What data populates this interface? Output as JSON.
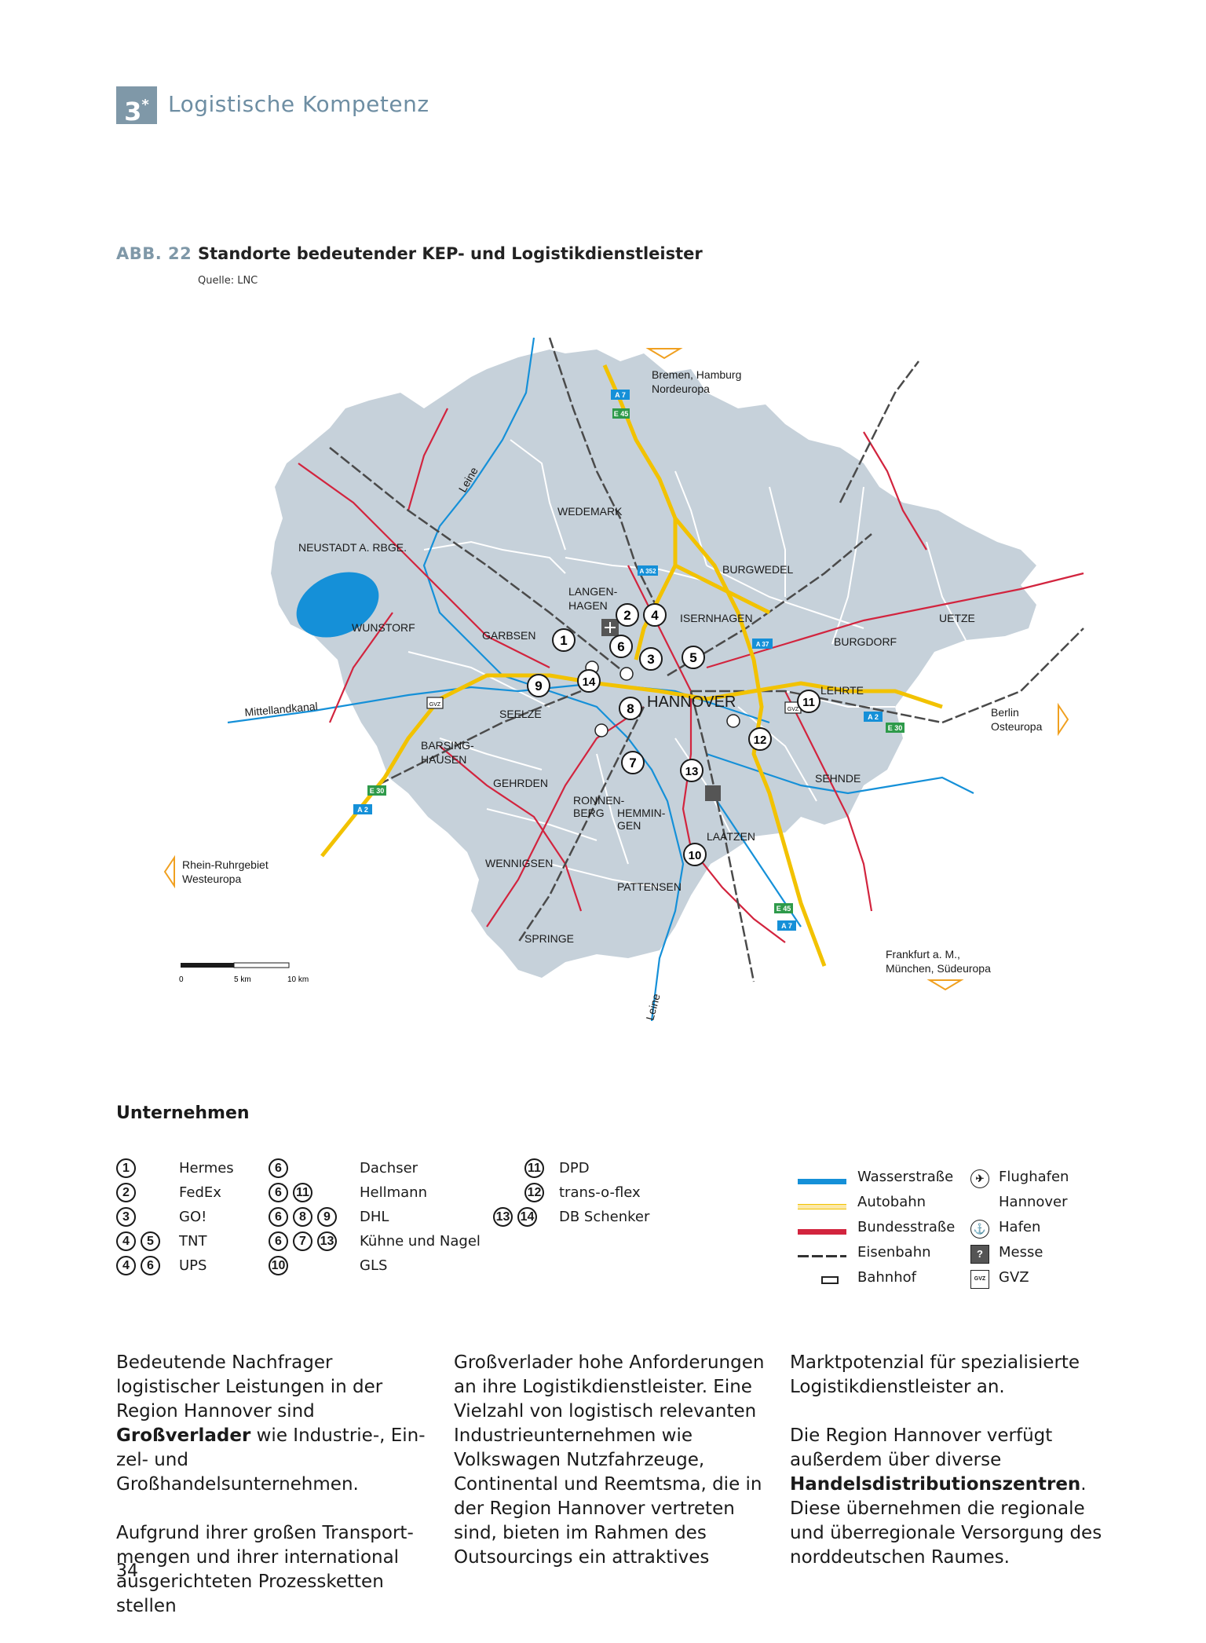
{
  "header": {
    "chapter_number": "3",
    "chapter_mark": "*",
    "chapter_title": "Logistische Kompetenz"
  },
  "figure": {
    "label": "ABB. 22",
    "title": "Standorte bedeutender KEP- und Logistikdienstleister",
    "source": "Quelle: LNC"
  },
  "map": {
    "region": "Region Hannover",
    "city": "HANNOVER",
    "towns": [
      "WEDEMARK",
      "NEUSTADT A. RBGE.",
      "BURGWEDEL",
      "LANGEN-",
      "HAGEN",
      "ISERNHAGEN",
      "UETZE",
      "WUNSTORF",
      "GARBSEN",
      "BURGDORF",
      "LEHRTE",
      "SEELZE",
      "BARSING-",
      "HAUSEN",
      "GEHRDEN",
      "SEHNDE",
      "RONNEN-",
      "BERG",
      "HEMMIN-",
      "GEN",
      "LAATZEN",
      "WENNIGSEN",
      "PATTENSEN",
      "SPRINGE"
    ],
    "directions": {
      "north": [
        "Bremen, Hamburg",
        "Nordeuropa"
      ],
      "east": [
        "Berlin",
        "Osteuropa"
      ],
      "west": [
        "Rhein-Ruhrgebiet",
        "Westeuropa"
      ],
      "south": [
        "Frankfurt a. M.,",
        "München, Südeuropa"
      ]
    },
    "water_labels": [
      "Leine",
      "Mittellandkanal",
      "Leine"
    ],
    "road_badges": {
      "a7_top": "A 7",
      "e45_top": "E 45",
      "a352": "A 352",
      "a37": "A 37",
      "a2_east": "A 2",
      "e30_east": "E 30",
      "e30_west": "E 30",
      "a2_west": "A 2",
      "e45_bottom": "E 45",
      "a7_bottom": "A 7"
    },
    "scale": {
      "labels": [
        "0",
        "5 km",
        "10 km"
      ]
    },
    "markers": [
      "1",
      "2",
      "4",
      "6",
      "3",
      "5",
      "9",
      "14",
      "8",
      "11",
      "12",
      "7",
      "13",
      "10"
    ],
    "gvz_label": "GVZ",
    "colors": {
      "land": "#c6d1da",
      "water": "#1590d8",
      "autobahn": "#f2c200",
      "bundesstrasse": "#d2243e",
      "rail": "#4a4a4a"
    }
  },
  "legend": {
    "heading": "Unternehmen",
    "companies": [
      {
        "nums": [
          "1"
        ],
        "name": "Hermes"
      },
      {
        "nums": [
          "2"
        ],
        "name": "FedEx"
      },
      {
        "nums": [
          "3"
        ],
        "name": "GO!"
      },
      {
        "nums": [
          "4",
          "5"
        ],
        "name": "TNT"
      },
      {
        "nums": [
          "4",
          "6"
        ],
        "name": "UPS"
      },
      {
        "nums": [
          "6"
        ],
        "name": "Dachser"
      },
      {
        "nums": [
          "6",
          "11"
        ],
        "name": "Hellmann"
      },
      {
        "nums": [
          "6",
          "8",
          "9"
        ],
        "name": "DHL"
      },
      {
        "nums": [
          "6",
          "7",
          "13"
        ],
        "name": "Kühne und Nagel"
      },
      {
        "nums": [
          "10"
        ],
        "name": "GLS"
      },
      {
        "nums": [
          "11"
        ],
        "name": "DPD"
      },
      {
        "nums": [
          "12"
        ],
        "name": "trans-o-flex"
      },
      {
        "nums": [
          "13",
          "14"
        ],
        "name": "DB Schenker"
      }
    ],
    "line_keys": [
      "Wasserstraße",
      "Autobahn",
      "Bundesstraße",
      "Eisenbahn",
      "Bahnhof"
    ],
    "symbol_keys": [
      "Flughafen",
      "Hannover",
      "Hafen",
      "Messe",
      "GVZ"
    ],
    "gvz_icon_text": "GVZ"
  },
  "body": {
    "col1_p1_before": "Bedeutende Nachfrager logistischer Leistungen in der Region Hannover sind ",
    "col1_p1_bold": "Großverlader",
    "col1_p1_after": " wie Industrie-, Ein­zel- und Großhandelsunternehmen.",
    "col1_p2": "Aufgrund ihrer großen Transport­mengen und ihrer international aus­gerichteten Prozessketten stellen",
    "col2_p1": "Großverlader hohe Anforderungen an ihre Logistikdienstleister. Eine Vielzahl von logistisch relevanten Industrieunternehmen wie Volkswa­gen Nutzfahrzeuge, Continental und Reemtsma, die in der Region Hanno­ver vertreten sind, bieten im Rahmen des Outsourcings ein attraktives",
    "col3_p1": "Marktpotenzial für spezialisierte Logistikdienstleister an.",
    "col3_p2_before": "Die Region Hannover verfügt außer­dem über diverse ",
    "col3_p2_bold": "Handelsdistributi­onszentren",
    "col3_p2_after": ". Diese übernehmen die regionale und überregionale Versor­gung des norddeutschen Raumes."
  },
  "page_number": "34"
}
